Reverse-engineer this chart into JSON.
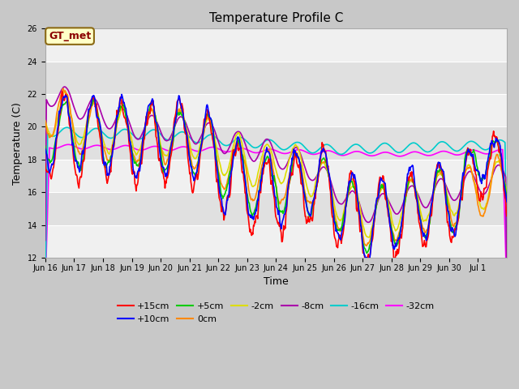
{
  "title": "Temperature Profile C",
  "xlabel": "Time",
  "ylabel": "Temperature (C)",
  "ylim": [
    12,
    26
  ],
  "xlim_days": 16,
  "legend_label": "GT_met",
  "series_colors": {
    "+15cm": "#ff0000",
    "+10cm": "#0000ff",
    "+5cm": "#00cc00",
    "0cm": "#ff8800",
    "-2cm": "#dddd00",
    "-8cm": "#aa00aa",
    "-16cm": "#00cccc",
    "-32cm": "#ff00ff"
  },
  "xtick_labels": [
    "Jun 16",
    "Jun 17",
    "Jun 18",
    "Jun 19",
    "Jun 20",
    "Jun 21",
    "Jun 22",
    "Jun 23",
    "Jun 24",
    "Jun 25",
    "Jun 26",
    "Jun 27",
    "Jun 28",
    "Jun 29",
    "Jun 30",
    "Jul 1"
  ],
  "ytick_values": [
    12,
    14,
    16,
    18,
    20,
    22,
    24,
    26
  ],
  "fig_facecolor": "#c8c8c8",
  "plot_facecolor": "#e8e8e8",
  "band_colors": [
    "#f0f0f0",
    "#e0e0e0"
  ],
  "grid_color": "#ffffff",
  "title_fontsize": 11,
  "axis_fontsize": 9,
  "tick_fontsize": 7,
  "legend_fontsize": 8
}
